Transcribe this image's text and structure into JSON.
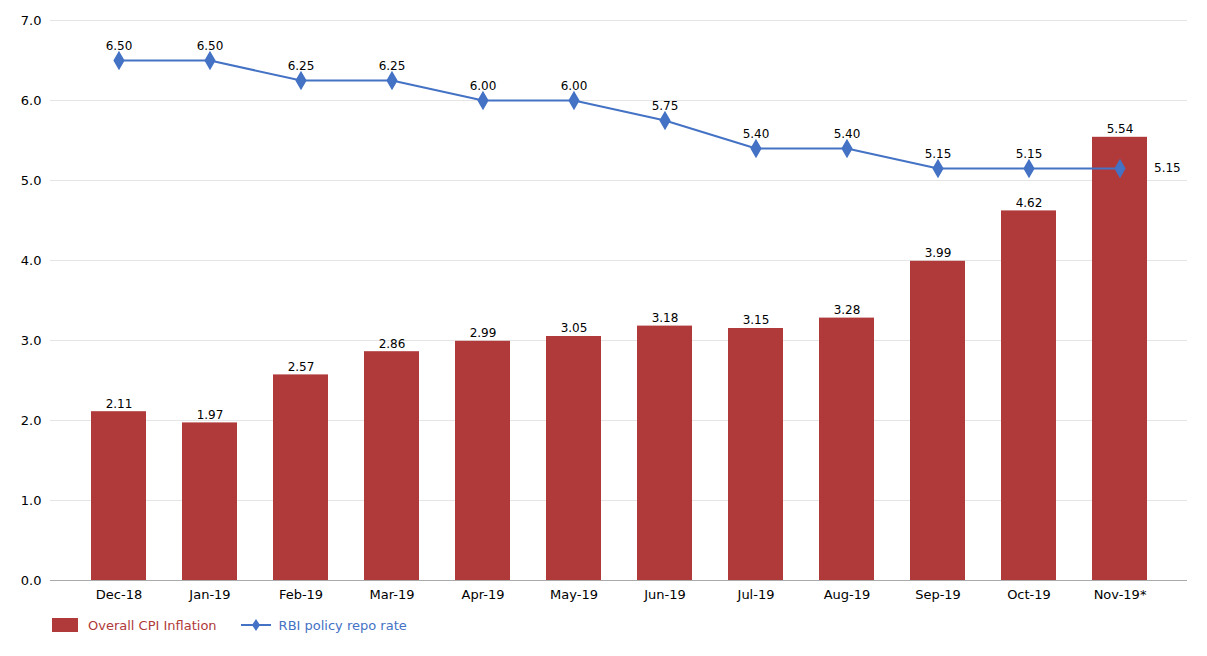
{
  "chart_data": {
    "type": "bar",
    "categories": [
      "Dec-18",
      "Jan-19",
      "Feb-19",
      "Mar-19",
      "Apr-19",
      "May-19",
      "Jun-19",
      "Jul-19",
      "Aug-19",
      "Sep-19",
      "Oct-19",
      "Nov-19*"
    ],
    "series": [
      {
        "name": "Overall CPI Inflation",
        "type": "bar",
        "color": "#B03A3A",
        "values": [
          2.11,
          1.97,
          2.57,
          2.86,
          2.99,
          3.05,
          3.18,
          3.15,
          3.28,
          3.99,
          4.62,
          5.54
        ]
      },
      {
        "name": "RBI policy repo rate",
        "type": "line",
        "color": "#4472C4",
        "marker": "diamond",
        "values": [
          6.5,
          6.5,
          6.25,
          6.25,
          6.0,
          6.0,
          5.75,
          5.4,
          5.4,
          5.15,
          5.15,
          5.15
        ],
        "value_labels": [
          "6.50",
          "6.50",
          "6.25",
          "6.25",
          "6.00",
          "6.00",
          "5.75",
          "5.40",
          "5.40",
          "5.15",
          "5.15",
          "5.15"
        ]
      }
    ],
    "ylim": [
      0,
      7
    ],
    "yticks": [
      0,
      1,
      2,
      3,
      4,
      5,
      6,
      7
    ],
    "grid": true,
    "data_labels": true,
    "legend": "lower left"
  }
}
